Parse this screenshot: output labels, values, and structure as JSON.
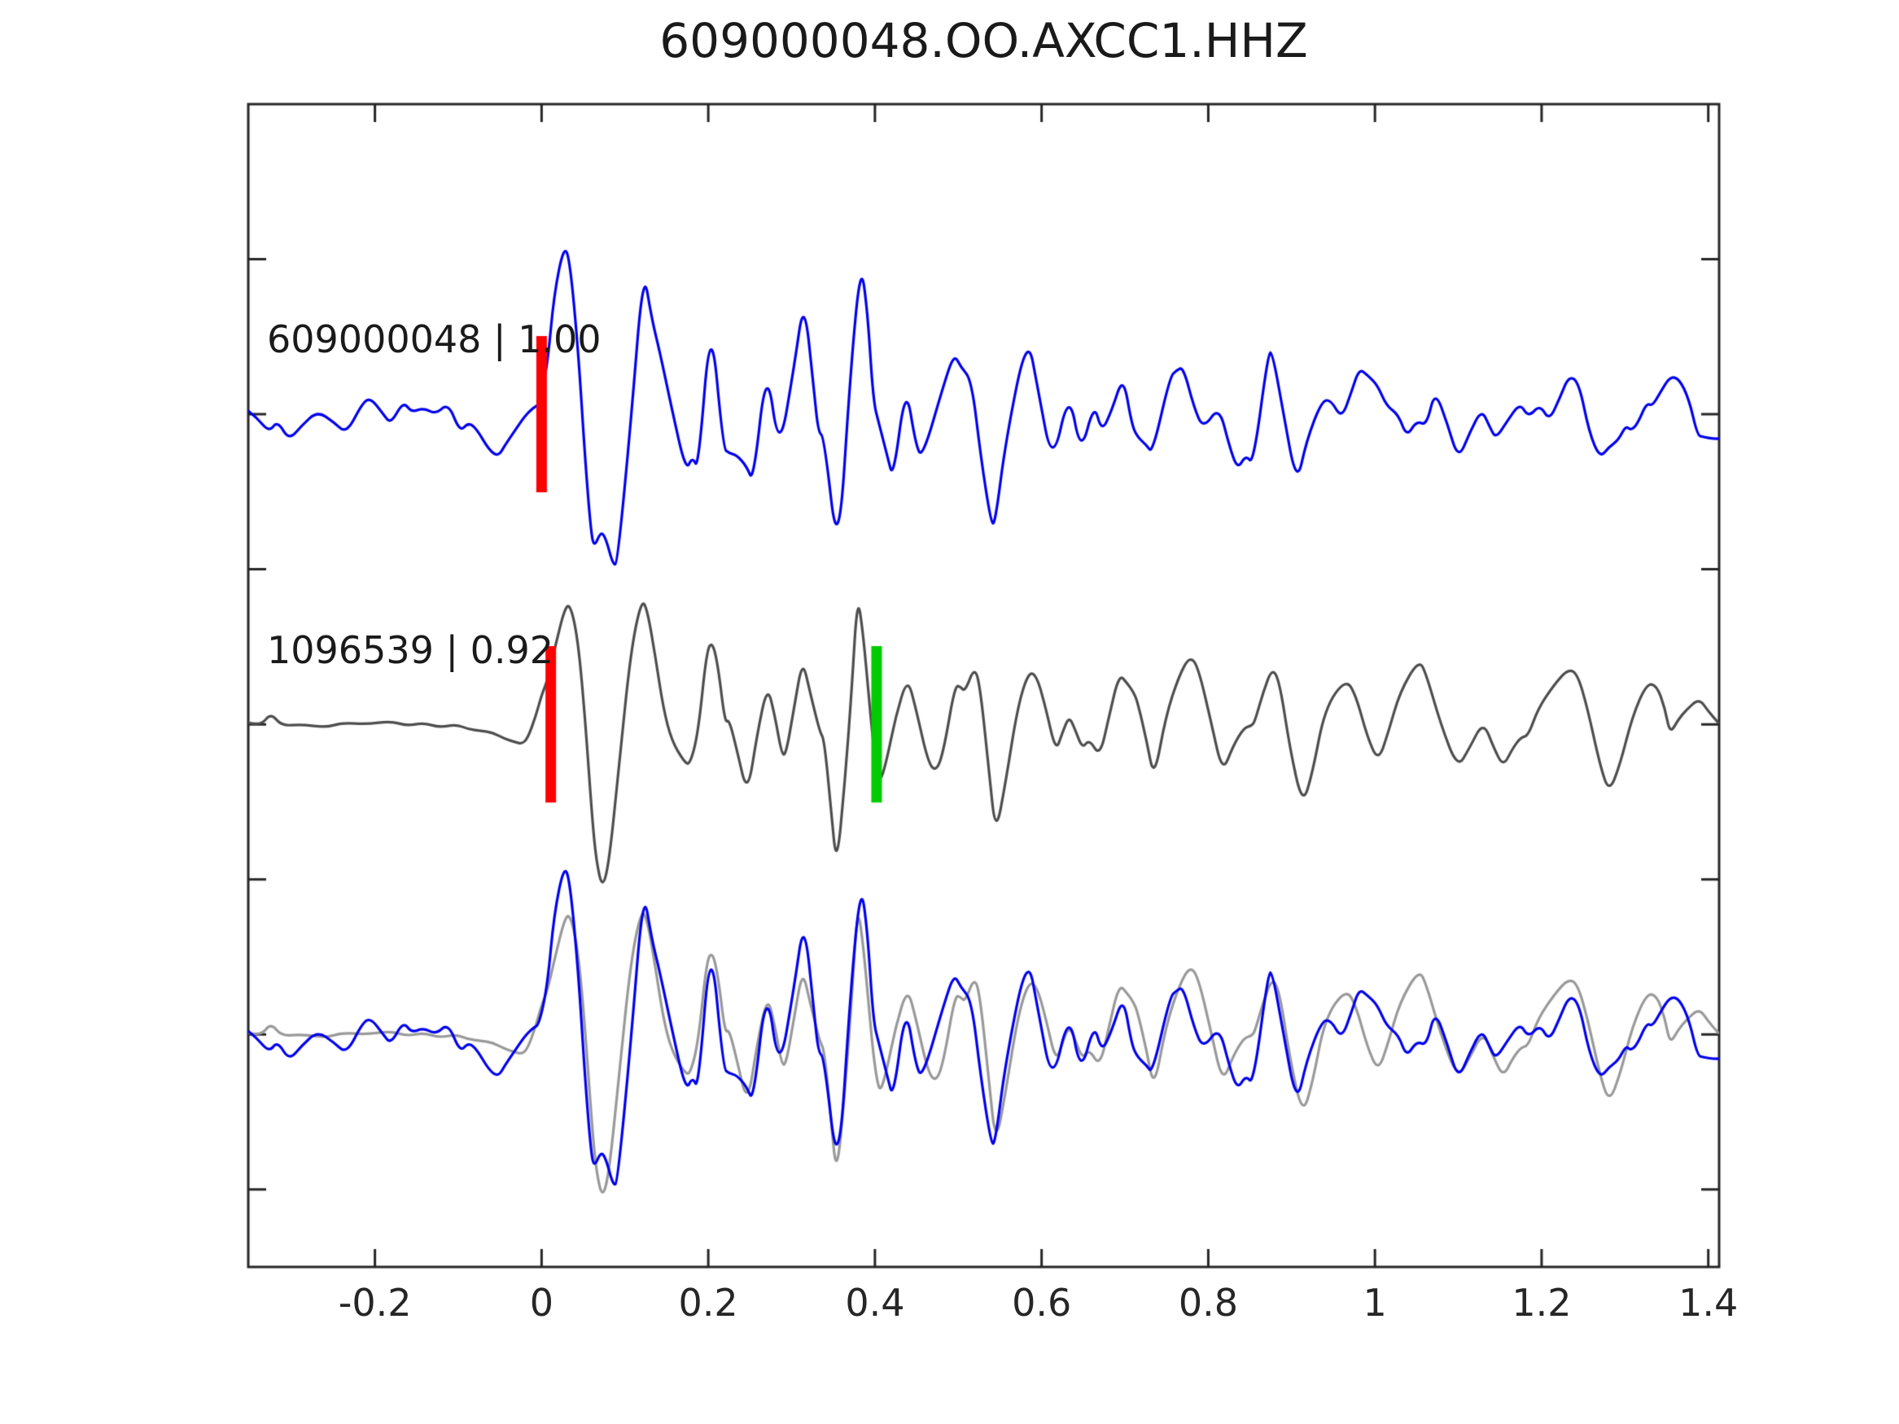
{
  "title": "609000048.OO.AXCC1.HHZ",
  "colors": {
    "template": "#0000ee",
    "detection_dark": "#4d4d4d",
    "detection_light": "#999999",
    "pick_red": "#ff0000",
    "pick_green": "#00cc00",
    "axis": "#262626",
    "background": "#ffffff"
  },
  "trace_labels": [
    {
      "text": "609000048 | 1.00"
    },
    {
      "text": "1096539 | 0.92"
    }
  ],
  "chart_data": {
    "type": "line",
    "title": "609000048.OO.AXCC1.HHZ",
    "xlabel": "",
    "ylabel": "",
    "xlim": [
      -0.352,
      1.413
    ],
    "xticks": [
      -0.2,
      0,
      0.2,
      0.4,
      0.6,
      0.8,
      1,
      1.2,
      1.4
    ],
    "xtick_labels": [
      "-0.2",
      "0",
      "0.2",
      "0.4",
      "0.6",
      "0.8",
      "1",
      "1.2",
      "1.4"
    ],
    "ylim": [
      -3.5,
      4.0
    ],
    "yticks": [
      -3,
      -2,
      -1,
      0,
      1,
      2,
      3
    ],
    "ytick_labels": [
      "",
      "",
      "",
      "",
      "",
      "",
      ""
    ],
    "grid": false,
    "legend": "none",
    "tick_direction": "in",
    "marker_half_height": 0.48,
    "amplitude_scale_units": 1.05,
    "rows": [
      {
        "name": "template-row",
        "offset": 2.0,
        "series": [
          "template"
        ],
        "series_colors": [
          "template"
        ],
        "markers": [
          {
            "x": 0.0,
            "color": "pick_red"
          }
        ],
        "label": "609000048 | 1.00",
        "correlation": "1.00"
      },
      {
        "name": "detection-row",
        "offset": 0.0,
        "series": [
          "detection"
        ],
        "series_colors": [
          "detection_dark"
        ],
        "markers": [
          {
            "x": 0.011,
            "color": "pick_red"
          },
          {
            "x": 0.402,
            "color": "pick_green"
          }
        ],
        "label": "1096539 | 0.92",
        "correlation": "0.92"
      },
      {
        "name": "overlay-row",
        "offset": -2.0,
        "series": [
          "detection",
          "template"
        ],
        "series_colors": [
          "detection_light",
          "template"
        ],
        "markers": []
      }
    ],
    "series": {
      "template": [
        [
          -0.352,
          0.02
        ],
        [
          -0.342,
          -0.02
        ],
        [
          -0.327,
          -0.11
        ],
        [
          -0.317,
          -0.04
        ],
        [
          -0.303,
          -0.16
        ],
        [
          -0.288,
          -0.07
        ],
        [
          -0.269,
          0.02
        ],
        [
          -0.249,
          -0.05
        ],
        [
          -0.234,
          -0.12
        ],
        [
          -0.215,
          0.07
        ],
        [
          -0.205,
          0.1
        ],
        [
          -0.19,
          0.0
        ],
        [
          -0.181,
          -0.06
        ],
        [
          -0.166,
          0.08
        ],
        [
          -0.156,
          0.01
        ],
        [
          -0.142,
          0.04
        ],
        [
          -0.127,
          0.0
        ],
        [
          -0.112,
          0.07
        ],
        [
          -0.098,
          -0.11
        ],
        [
          -0.088,
          -0.05
        ],
        [
          -0.078,
          -0.09
        ],
        [
          -0.063,
          -0.22
        ],
        [
          -0.052,
          -0.26
        ],
        [
          -0.044,
          -0.19
        ],
        [
          -0.032,
          -0.1
        ],
        [
          -0.02,
          -0.01
        ],
        [
          -0.01,
          0.04
        ],
        [
          -0.003,
          0.06
        ],
        [
          0.007,
          0.3
        ],
        [
          0.015,
          0.74
        ],
        [
          0.027,
          1.04
        ],
        [
          0.034,
          0.94
        ],
        [
          0.044,
          0.39
        ],
        [
          0.052,
          -0.26
        ],
        [
          0.059,
          -0.71
        ],
        [
          0.063,
          -0.82
        ],
        [
          0.071,
          -0.72
        ],
        [
          0.077,
          -0.76
        ],
        [
          0.086,
          -0.93
        ],
        [
          0.091,
          -0.91
        ],
        [
          0.107,
          -0.06
        ],
        [
          0.122,
          0.9
        ],
        [
          0.132,
          0.59
        ],
        [
          0.142,
          0.38
        ],
        [
          0.156,
          0.04
        ],
        [
          0.173,
          -0.35
        ],
        [
          0.181,
          -0.26
        ],
        [
          0.188,
          -0.34
        ],
        [
          0.203,
          0.62
        ],
        [
          0.218,
          -0.21
        ],
        [
          0.225,
          -0.24
        ],
        [
          0.234,
          -0.25
        ],
        [
          0.246,
          -0.32
        ],
        [
          0.254,
          -0.42
        ],
        [
          0.27,
          0.32
        ],
        [
          0.285,
          -0.25
        ],
        [
          0.303,
          0.29
        ],
        [
          0.315,
          0.72
        ],
        [
          0.327,
          0.14
        ],
        [
          0.332,
          -0.11
        ],
        [
          0.339,
          -0.14
        ],
        [
          0.356,
          -0.91
        ],
        [
          0.371,
          0.29
        ],
        [
          0.383,
          0.93
        ],
        [
          0.391,
          0.64
        ],
        [
          0.398,
          0.08
        ],
        [
          0.405,
          -0.06
        ],
        [
          0.415,
          -0.26
        ],
        [
          0.422,
          -0.4
        ],
        [
          0.437,
          0.19
        ],
        [
          0.449,
          -0.19
        ],
        [
          0.457,
          -0.27
        ],
        [
          0.483,
          0.19
        ],
        [
          0.495,
          0.37
        ],
        [
          0.503,
          0.29
        ],
        [
          0.516,
          0.21
        ],
        [
          0.527,
          -0.26
        ],
        [
          0.539,
          -0.66
        ],
        [
          0.544,
          -0.68
        ],
        [
          0.557,
          -0.16
        ],
        [
          0.583,
          0.5
        ],
        [
          0.596,
          0.14
        ],
        [
          0.613,
          -0.32
        ],
        [
          0.633,
          0.15
        ],
        [
          0.647,
          -0.25
        ],
        [
          0.663,
          0.07
        ],
        [
          0.672,
          -0.11
        ],
        [
          0.684,
          0.02
        ],
        [
          0.698,
          0.24
        ],
        [
          0.708,
          -0.06
        ],
        [
          0.715,
          -0.14
        ],
        [
          0.726,
          -0.19
        ],
        [
          0.733,
          -0.24
        ],
        [
          0.754,
          0.23
        ],
        [
          0.762,
          0.27
        ],
        [
          0.77,
          0.29
        ],
        [
          0.783,
          0.04
        ],
        [
          0.794,
          -0.09
        ],
        [
          0.813,
          0.05
        ],
        [
          0.825,
          -0.19
        ],
        [
          0.835,
          -0.34
        ],
        [
          0.845,
          -0.25
        ],
        [
          0.854,
          -0.31
        ],
        [
          0.872,
          0.38
        ],
        [
          0.877,
          0.38
        ],
        [
          0.889,
          0.04
        ],
        [
          0.906,
          -0.44
        ],
        [
          0.918,
          -0.16
        ],
        [
          0.936,
          0.08
        ],
        [
          0.947,
          0.09
        ],
        [
          0.96,
          -0.03
        ],
        [
          0.972,
          0.14
        ],
        [
          0.981,
          0.28
        ],
        [
          0.991,
          0.24
        ],
        [
          1.003,
          0.18
        ],
        [
          1.014,
          0.05
        ],
        [
          1.028,
          0.0
        ],
        [
          1.038,
          -0.14
        ],
        [
          1.05,
          -0.04
        ],
        [
          1.062,
          -0.07
        ],
        [
          1.072,
          0.15
        ],
        [
          1.087,
          -0.06
        ],
        [
          1.1,
          -0.28
        ],
        [
          1.114,
          -0.11
        ],
        [
          1.128,
          0.03
        ],
        [
          1.138,
          -0.08
        ],
        [
          1.145,
          -0.15
        ],
        [
          1.159,
          -0.04
        ],
        [
          1.174,
          0.07
        ],
        [
          1.184,
          -0.02
        ],
        [
          1.198,
          0.06
        ],
        [
          1.209,
          -0.04
        ],
        [
          1.221,
          0.09
        ],
        [
          1.233,
          0.24
        ],
        [
          1.245,
          0.19
        ],
        [
          1.257,
          -0.11
        ],
        [
          1.27,
          -0.27
        ],
        [
          1.281,
          -0.2
        ],
        [
          1.292,
          -0.16
        ],
        [
          1.301,
          -0.07
        ],
        [
          1.307,
          -0.1
        ],
        [
          1.315,
          -0.06
        ],
        [
          1.326,
          0.07
        ],
        [
          1.333,
          0.05
        ],
        [
          1.343,
          0.14
        ],
        [
          1.354,
          0.23
        ],
        [
          1.365,
          0.22
        ],
        [
          1.377,
          0.09
        ],
        [
          1.387,
          -0.13
        ],
        [
          1.394,
          -0.14
        ],
        [
          1.406,
          -0.15
        ],
        [
          1.413,
          -0.15
        ]
      ],
      "detection": [
        [
          -0.352,
          0.01
        ],
        [
          -0.337,
          -0.01
        ],
        [
          -0.325,
          0.07
        ],
        [
          -0.312,
          -0.01
        ],
        [
          -0.288,
          0.0
        ],
        [
          -0.259,
          -0.02
        ],
        [
          -0.239,
          0.01
        ],
        [
          -0.21,
          0.0
        ],
        [
          -0.181,
          0.02
        ],
        [
          -0.161,
          -0.01
        ],
        [
          -0.142,
          0.01
        ],
        [
          -0.122,
          -0.02
        ],
        [
          -0.103,
          0.0
        ],
        [
          -0.088,
          -0.03
        ],
        [
          -0.073,
          -0.04
        ],
        [
          -0.059,
          -0.05
        ],
        [
          -0.044,
          -0.09
        ],
        [
          -0.031,
          -0.11
        ],
        [
          -0.024,
          -0.12
        ],
        [
          -0.017,
          -0.09
        ],
        [
          -0.007,
          0.05
        ],
        [
          0.0,
          0.18
        ],
        [
          0.007,
          0.27
        ],
        [
          0.015,
          0.45
        ],
        [
          0.029,
          0.74
        ],
        [
          0.036,
          0.71
        ],
        [
          0.044,
          0.5
        ],
        [
          0.052,
          0.05
        ],
        [
          0.061,
          -0.6
        ],
        [
          0.066,
          -0.85
        ],
        [
          0.073,
          -1.01
        ],
        [
          0.081,
          -0.85
        ],
        [
          0.093,
          -0.25
        ],
        [
          0.107,
          0.45
        ],
        [
          0.12,
          0.77
        ],
        [
          0.127,
          0.7
        ],
        [
          0.137,
          0.4
        ],
        [
          0.146,
          0.1
        ],
        [
          0.156,
          -0.1
        ],
        [
          0.171,
          -0.23
        ],
        [
          0.178,
          -0.25
        ],
        [
          0.188,
          -0.05
        ],
        [
          0.198,
          0.45
        ],
        [
          0.205,
          0.51
        ],
        [
          0.212,
          0.35
        ],
        [
          0.22,
          0.01
        ],
        [
          0.225,
          0.03
        ],
        [
          0.234,
          -0.15
        ],
        [
          0.247,
          -0.44
        ],
        [
          0.259,
          -0.05
        ],
        [
          0.271,
          0.24
        ],
        [
          0.28,
          0.05
        ],
        [
          0.288,
          -0.18
        ],
        [
          0.293,
          -0.19
        ],
        [
          0.303,
          0.1
        ],
        [
          0.313,
          0.4
        ],
        [
          0.322,
          0.2
        ],
        [
          0.334,
          -0.05
        ],
        [
          0.339,
          -0.09
        ],
        [
          0.347,
          -0.5
        ],
        [
          0.354,
          -0.89
        ],
        [
          0.364,
          -0.35
        ],
        [
          0.372,
          0.2
        ],
        [
          0.379,
          0.8
        ],
        [
          0.386,
          0.55
        ],
        [
          0.393,
          0.15
        ],
        [
          0.398,
          -0.12
        ],
        [
          0.403,
          -0.3
        ],
        [
          0.407,
          -0.35
        ],
        [
          0.415,
          -0.2
        ],
        [
          0.425,
          0.05
        ],
        [
          0.439,
          0.29
        ],
        [
          0.449,
          0.1
        ],
        [
          0.464,
          -0.24
        ],
        [
          0.474,
          -0.29
        ],
        [
          0.483,
          -0.15
        ],
        [
          0.496,
          0.24
        ],
        [
          0.503,
          0.23
        ],
        [
          0.508,
          0.2
        ],
        [
          0.52,
          0.36
        ],
        [
          0.527,
          0.2
        ],
        [
          0.537,
          -0.3
        ],
        [
          0.545,
          -0.68
        ],
        [
          0.557,
          -0.35
        ],
        [
          0.571,
          0.1
        ],
        [
          0.584,
          0.32
        ],
        [
          0.594,
          0.3
        ],
        [
          0.605,
          0.1
        ],
        [
          0.617,
          -0.17
        ],
        [
          0.625,
          -0.05
        ],
        [
          0.633,
          0.05
        ],
        [
          0.64,
          -0.03
        ],
        [
          0.649,
          -0.15
        ],
        [
          0.657,
          -0.09
        ],
        [
          0.67,
          -0.2
        ],
        [
          0.681,
          0.05
        ],
        [
          0.693,
          0.31
        ],
        [
          0.703,
          0.25
        ],
        [
          0.71,
          0.2
        ],
        [
          0.715,
          0.14
        ],
        [
          0.726,
          -0.1
        ],
        [
          0.735,
          -0.34
        ],
        [
          0.749,
          0.05
        ],
        [
          0.765,
          0.3
        ],
        [
          0.778,
          0.42
        ],
        [
          0.788,
          0.35
        ],
        [
          0.804,
          0.0
        ],
        [
          0.817,
          -0.3
        ],
        [
          0.83,
          -0.13
        ],
        [
          0.843,
          -0.02
        ],
        [
          0.852,
          -0.01
        ],
        [
          0.856,
          0.02
        ],
        [
          0.866,
          0.2
        ],
        [
          0.877,
          0.35
        ],
        [
          0.886,
          0.25
        ],
        [
          0.898,
          -0.15
        ],
        [
          0.913,
          -0.5
        ],
        [
          0.925,
          -0.3
        ],
        [
          0.94,
          0.1
        ],
        [
          0.965,
          0.28
        ],
        [
          0.977,
          0.18
        ],
        [
          0.991,
          -0.08
        ],
        [
          1.004,
          -0.23
        ],
        [
          1.016,
          -0.05
        ],
        [
          1.03,
          0.2
        ],
        [
          1.053,
          0.4
        ],
        [
          1.062,
          0.3
        ],
        [
          1.079,
          0.0
        ],
        [
          1.099,
          -0.27
        ],
        [
          1.113,
          -0.15
        ],
        [
          1.13,
          0.02
        ],
        [
          1.143,
          -0.15
        ],
        [
          1.154,
          -0.26
        ],
        [
          1.165,
          -0.15
        ],
        [
          1.175,
          -0.08
        ],
        [
          1.184,
          -0.07
        ],
        [
          1.196,
          0.1
        ],
        [
          1.216,
          0.25
        ],
        [
          1.232,
          0.34
        ],
        [
          1.243,
          0.31
        ],
        [
          1.255,
          0.1
        ],
        [
          1.27,
          -0.25
        ],
        [
          1.281,
          -0.42
        ],
        [
          1.294,
          -0.25
        ],
        [
          1.309,
          0.05
        ],
        [
          1.326,
          0.25
        ],
        [
          1.338,
          0.24
        ],
        [
          1.348,
          0.1
        ],
        [
          1.354,
          -0.06
        ],
        [
          1.364,
          0.03
        ],
        [
          1.374,
          0.09
        ],
        [
          1.389,
          0.16
        ],
        [
          1.4,
          0.08
        ],
        [
          1.412,
          0.01
        ]
      ]
    }
  }
}
